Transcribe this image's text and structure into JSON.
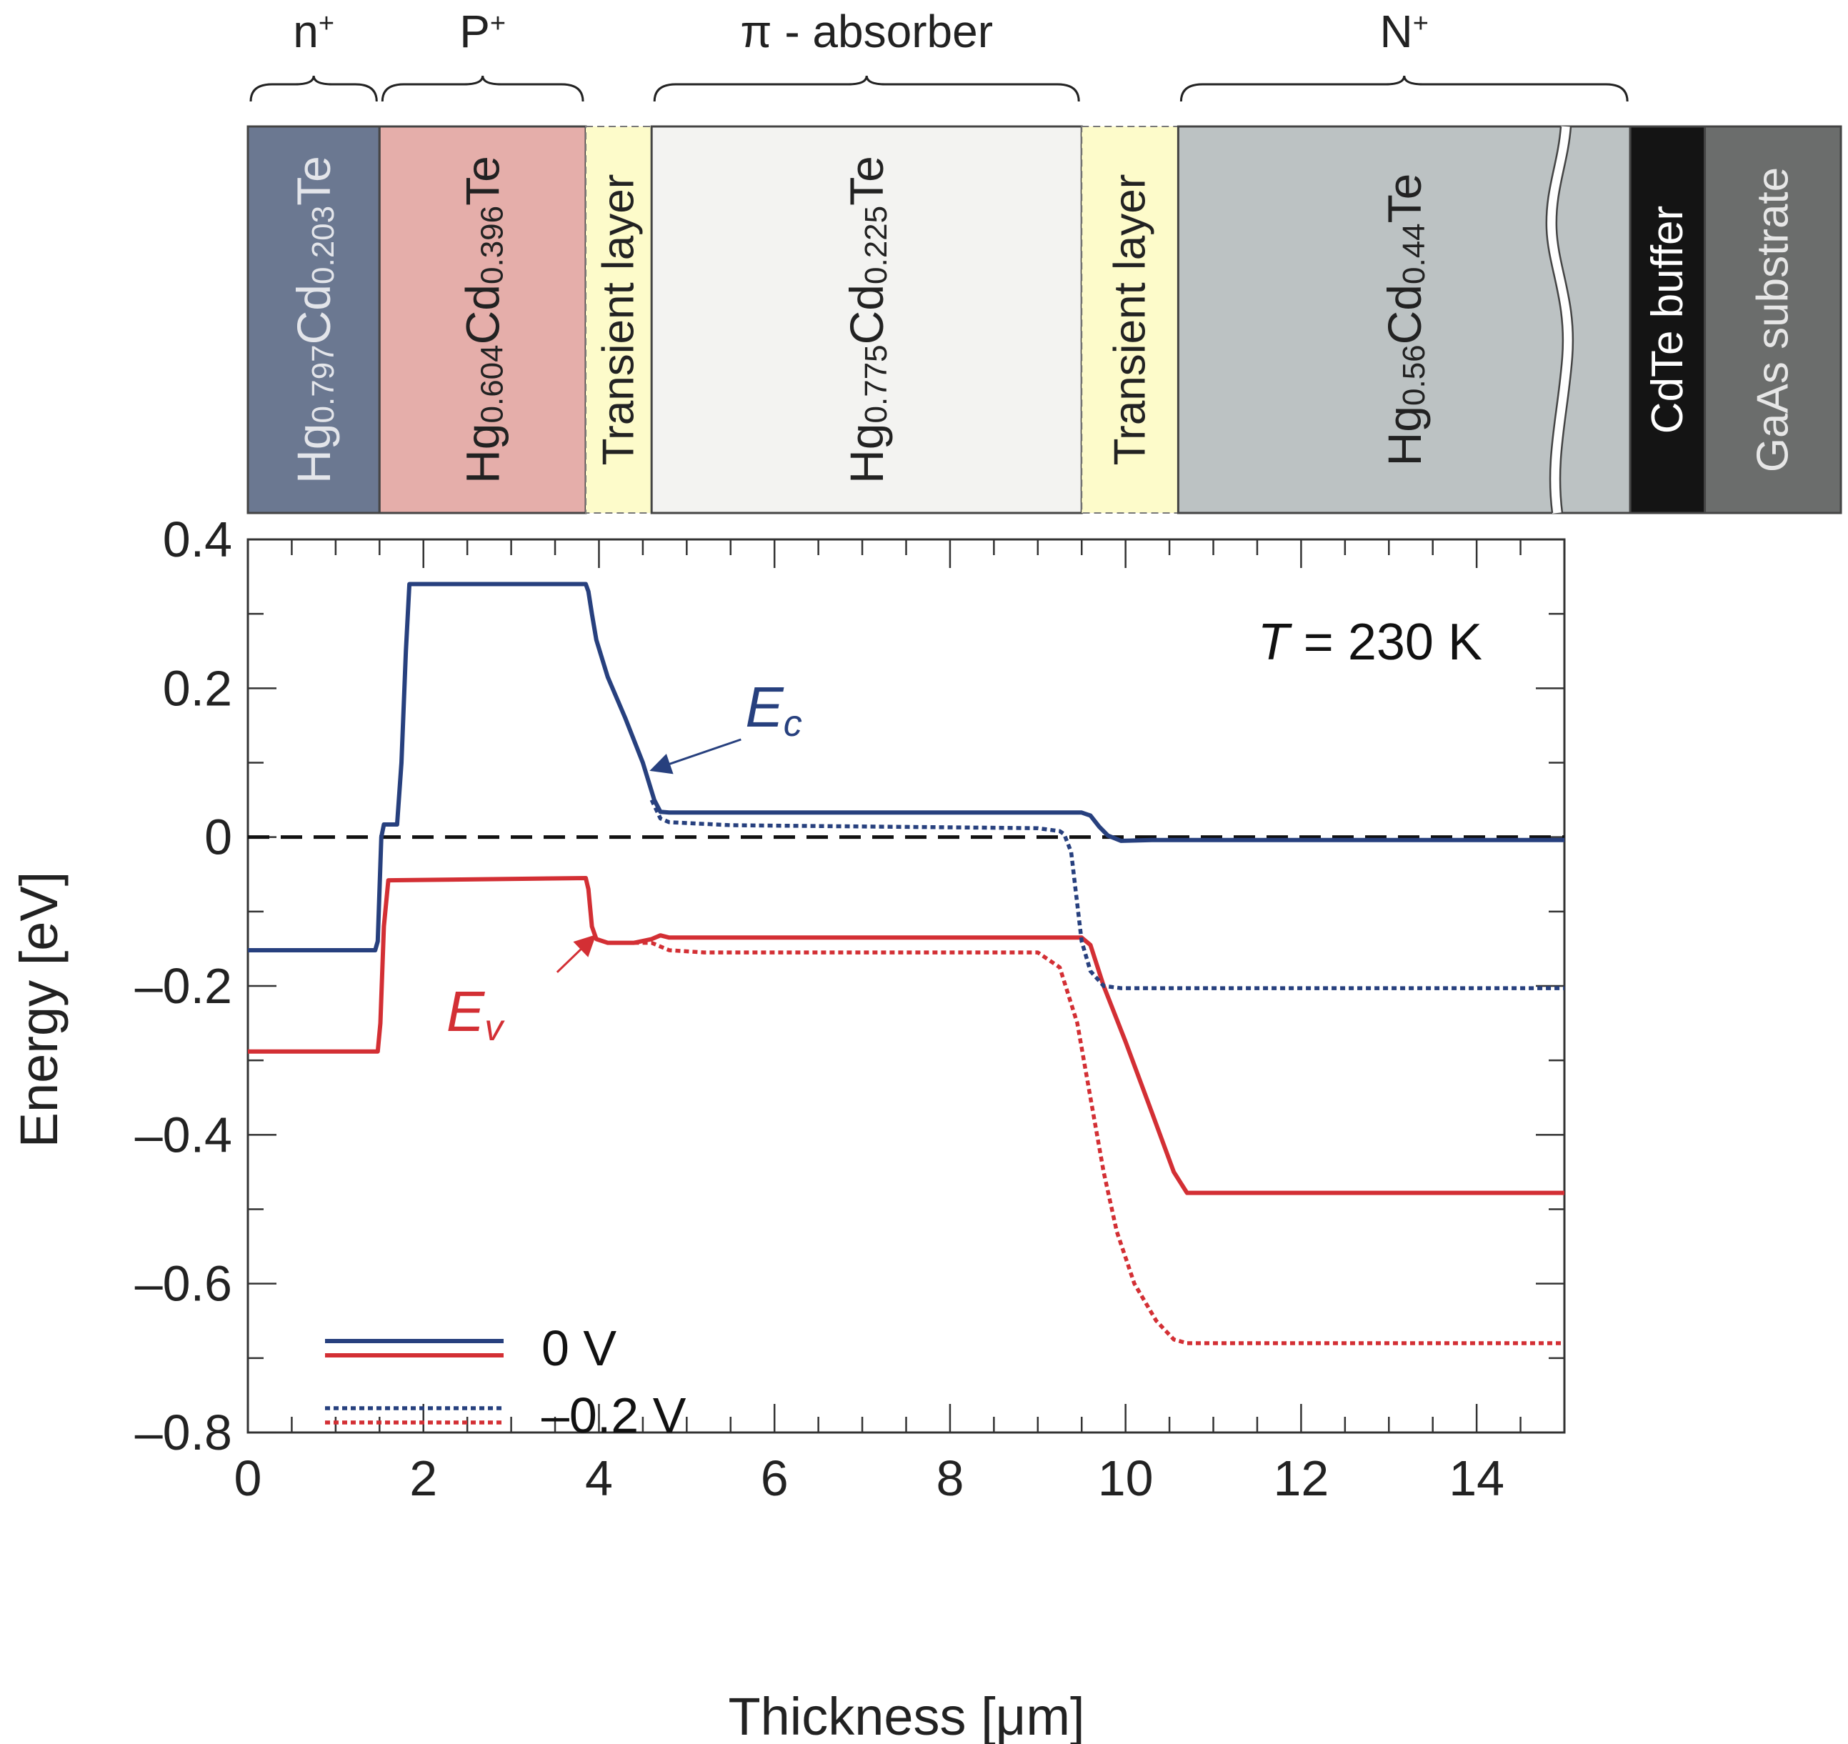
{
  "colors": {
    "ec": "#27407e",
    "ev": "#d32f34",
    "n_plus": "#6b7891",
    "p_plus": "#e5aeaa",
    "transient": "#fdfbca",
    "absorber": "#f3f3f1",
    "n_big": "#bcc2c3",
    "cdte": "#141414",
    "gaas": "#6b6d6c",
    "axis": "#333333"
  },
  "layers": {
    "regions": [
      {
        "key": "n_plus",
        "label": "n",
        "sup": "+",
        "x0": 0,
        "x1": 1.5
      },
      {
        "key": "p_plus",
        "label": "P",
        "sup": "+",
        "x0": 1.5,
        "x1": 3.85
      },
      {
        "key": "absorber",
        "label": "π - absorber",
        "sup": "",
        "x0": 4.6,
        "x1": 9.5
      },
      {
        "key": "n_big",
        "label": "N",
        "sup": "+",
        "x0": 10.6,
        "x1": 15.75
      }
    ],
    "blocks": [
      {
        "key": "n_plus",
        "x0": 0,
        "x1": 1.5,
        "base": "Hg",
        "s1": "0.797",
        "mid": "Cd",
        "s2": "0.203",
        "tail": "Te",
        "text_color": "#e3e5ea"
      },
      {
        "key": "p_plus",
        "x0": 1.5,
        "x1": 3.85,
        "base": "Hg",
        "s1": "0.604",
        "mid": "Cd",
        "s2": "0.396",
        "tail": "Te",
        "text_color": "#222222"
      },
      {
        "key": "transient",
        "x0": 3.85,
        "x1": 4.6,
        "plain": "Transient layer",
        "text_color": "#222222",
        "dashed": true
      },
      {
        "key": "absorber",
        "x0": 4.6,
        "x1": 9.5,
        "base": "Hg",
        "s1": "0.775",
        "mid": "Cd",
        "s2": "0.225",
        "tail": "Te",
        "text_color": "#222222"
      },
      {
        "key": "transient",
        "x0": 9.5,
        "x1": 10.6,
        "plain": "Transient layer",
        "text_color": "#222222",
        "dashed": true
      },
      {
        "key": "n_big",
        "x0": 10.6,
        "x1": 15.75,
        "base": "Hg",
        "s1": "0.56",
        "mid": "Cd",
        "s2": "0.44",
        "tail": "Te",
        "text_color": "#222222"
      },
      {
        "key": "cdte",
        "x0": 15.75,
        "x1": 16.6,
        "plain": "CdTe buffer",
        "text_color": "#ffffff"
      },
      {
        "key": "gaas",
        "x0": 16.6,
        "x1": 18.15,
        "plain": "GaAs substrate",
        "text_color": "#e6e6e6"
      }
    ]
  },
  "chart_data": {
    "type": "line",
    "title": "",
    "xlabel": "Thickness [μm]",
    "ylabel": "Energy [eV]",
    "xlim": [
      0,
      15
    ],
    "ylim": [
      -0.8,
      0.4
    ],
    "x_ticks": [
      0,
      2,
      4,
      6,
      8,
      10,
      12,
      14
    ],
    "x_tick_labels": [
      "0",
      "2",
      "4",
      "6",
      "8",
      "10",
      "12",
      "14"
    ],
    "y_ticks": [
      0.4,
      0.2,
      0,
      -0.2,
      -0.4,
      -0.6,
      -0.8
    ],
    "y_tick_labels": [
      "0.4",
      "0.2",
      "0",
      "–0.2",
      "–0.4",
      "–0.6",
      "–0.8"
    ],
    "annotation_temperature": {
      "var": "T",
      "text": " = 230 K"
    },
    "label_ec": {
      "main": "E",
      "sub": "c",
      "x": 5.7,
      "y": 0.16,
      "arrow_to": [
        4.6,
        0.09
      ]
    },
    "label_ev": {
      "main": "E",
      "sub": "v",
      "x": 2.75,
      "y": -0.22,
      "arrow_to": [
        3.95,
        -0.133
      ]
    },
    "fermi_level": 0,
    "legend": [
      {
        "label": "0 V",
        "style": "solid"
      },
      {
        "label": "–0.2 V",
        "style": "dotted"
      }
    ],
    "series": [
      {
        "name": "Ec 0 V",
        "band": "ec",
        "style": "solid",
        "points": [
          [
            0,
            -0.152
          ],
          [
            1.45,
            -0.152
          ],
          [
            1.48,
            -0.14
          ],
          [
            1.52,
            0
          ],
          [
            1.55,
            0.017
          ],
          [
            1.7,
            0.017
          ],
          [
            1.75,
            0.1
          ],
          [
            1.8,
            0.25
          ],
          [
            1.84,
            0.34
          ],
          [
            3.85,
            0.34
          ],
          [
            3.88,
            0.33
          ],
          [
            3.92,
            0.3
          ],
          [
            3.97,
            0.265
          ],
          [
            4.1,
            0.215
          ],
          [
            4.3,
            0.16
          ],
          [
            4.5,
            0.1
          ],
          [
            4.63,
            0.05
          ],
          [
            4.7,
            0.034
          ],
          [
            4.8,
            0.033
          ],
          [
            9.5,
            0.033
          ],
          [
            9.6,
            0.029
          ],
          [
            9.7,
            0.014
          ],
          [
            9.8,
            0.002
          ],
          [
            9.95,
            -0.005
          ],
          [
            10.3,
            -0.004
          ],
          [
            15,
            -0.004
          ]
        ]
      },
      {
        "name": "Ev 0 V",
        "band": "ev",
        "style": "solid",
        "points": [
          [
            0,
            -0.288
          ],
          [
            1.48,
            -0.288
          ],
          [
            1.51,
            -0.25
          ],
          [
            1.55,
            -0.12
          ],
          [
            1.6,
            -0.058
          ],
          [
            3.85,
            -0.055
          ],
          [
            3.88,
            -0.07
          ],
          [
            3.92,
            -0.12
          ],
          [
            3.97,
            -0.137
          ],
          [
            4.1,
            -0.142
          ],
          [
            4.4,
            -0.142
          ],
          [
            4.6,
            -0.137
          ],
          [
            4.7,
            -0.132
          ],
          [
            4.8,
            -0.135
          ],
          [
            9.5,
            -0.135
          ],
          [
            9.6,
            -0.145
          ],
          [
            9.75,
            -0.2
          ],
          [
            10.0,
            -0.275
          ],
          [
            10.3,
            -0.37
          ],
          [
            10.55,
            -0.45
          ],
          [
            10.7,
            -0.478
          ],
          [
            10.8,
            -0.478
          ],
          [
            15,
            -0.478
          ]
        ]
      },
      {
        "name": "Ec -0.2 V",
        "band": "ec",
        "style": "dotted",
        "points": [
          [
            4.6,
            0.05
          ],
          [
            4.7,
            0.025
          ],
          [
            4.8,
            0.02
          ],
          [
            5.5,
            0.016
          ],
          [
            9.0,
            0.012
          ],
          [
            9.25,
            0.008
          ],
          [
            9.3,
            0.004
          ],
          [
            9.38,
            -0.02
          ],
          [
            9.43,
            -0.07
          ],
          [
            9.5,
            -0.14
          ],
          [
            9.6,
            -0.18
          ],
          [
            9.75,
            -0.2
          ],
          [
            9.95,
            -0.203
          ],
          [
            15,
            -0.203
          ]
        ]
      },
      {
        "name": "Ev -0.2 V",
        "band": "ev",
        "style": "dotted",
        "points": [
          [
            4.4,
            -0.142
          ],
          [
            4.6,
            -0.142
          ],
          [
            4.8,
            -0.152
          ],
          [
            5.2,
            -0.155
          ],
          [
            9.0,
            -0.155
          ],
          [
            9.25,
            -0.175
          ],
          [
            9.45,
            -0.25
          ],
          [
            9.6,
            -0.35
          ],
          [
            9.75,
            -0.45
          ],
          [
            9.9,
            -0.53
          ],
          [
            10.1,
            -0.6
          ],
          [
            10.35,
            -0.65
          ],
          [
            10.55,
            -0.675
          ],
          [
            10.7,
            -0.68
          ],
          [
            15,
            -0.68
          ]
        ]
      }
    ]
  }
}
